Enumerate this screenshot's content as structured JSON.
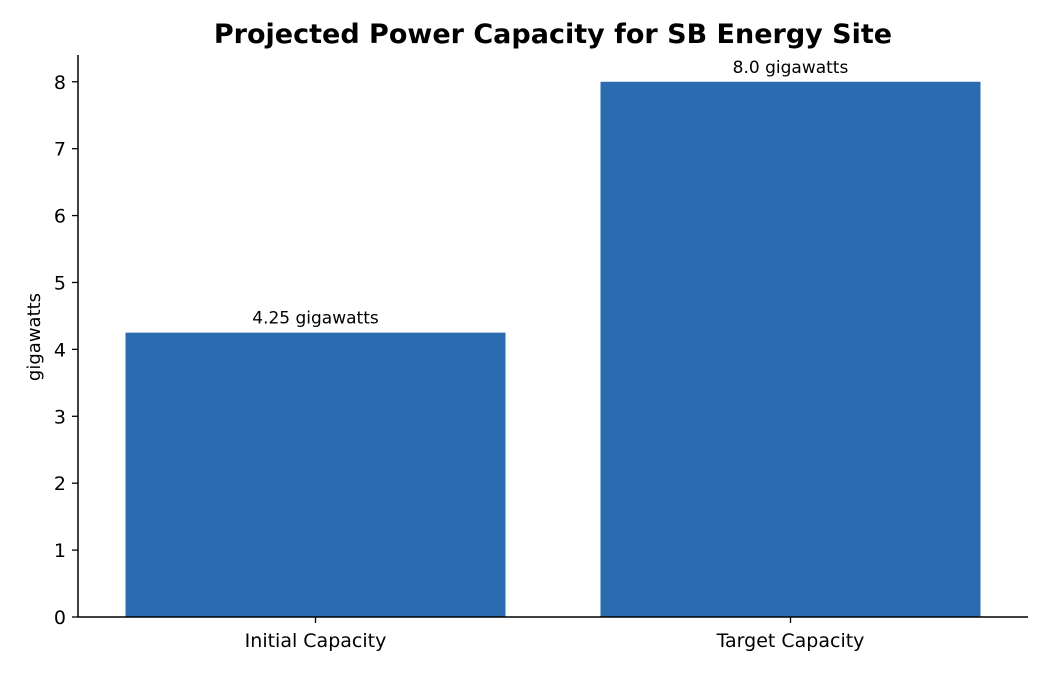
{
  "chart_data": {
    "type": "bar",
    "title": "Projected Power Capacity for SB Energy Site",
    "xlabel": "",
    "ylabel": "gigawatts",
    "categories": [
      "Initial Capacity",
      "Target Capacity"
    ],
    "values": [
      4.25,
      8.0
    ],
    "data_labels": [
      "4.25 gigawatts",
      "8.0 gigawatts"
    ],
    "ylim": [
      0,
      8.4
    ],
    "yticks": [
      0,
      1,
      2,
      3,
      4,
      5,
      6,
      7,
      8
    ],
    "grid": false,
    "legend": "none",
    "bar_color": "#2b6cb0"
  }
}
